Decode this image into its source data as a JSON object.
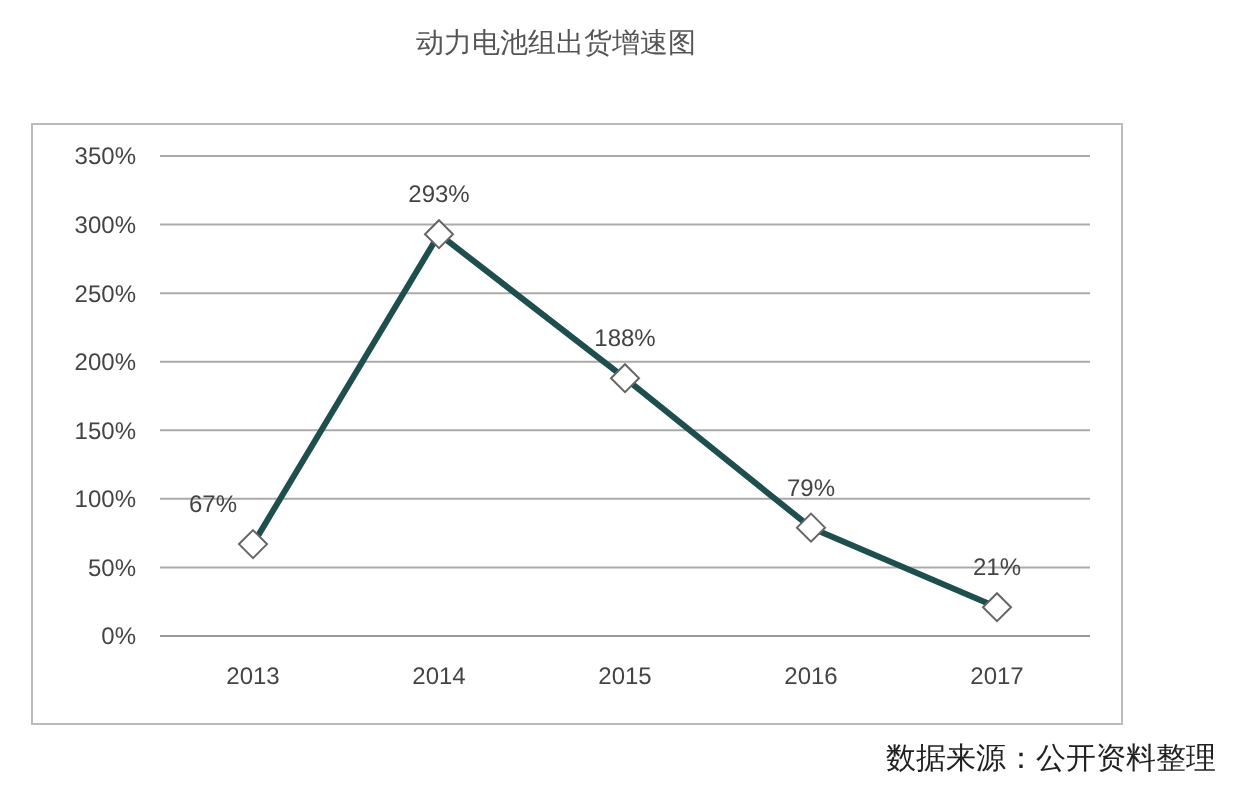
{
  "chart_data": {
    "type": "line",
    "title": "动力电池组出货增速图",
    "categories": [
      "2013",
      "2014",
      "2015",
      "2016",
      "2017"
    ],
    "series": [
      {
        "color": "#1f4e4f",
        "values": [
          67,
          293,
          188,
          79,
          21
        ],
        "value_labels": [
          "67%",
          "293%",
          "188%",
          "79%",
          "21%"
        ]
      }
    ],
    "ylim": [
      0,
      350
    ],
    "yticks": [
      {
        "value": 0,
        "label": "0%"
      },
      {
        "value": 50,
        "label": "50%"
      },
      {
        "value": 100,
        "label": "100%"
      },
      {
        "value": 150,
        "label": "150%"
      },
      {
        "value": 200,
        "label": "200%"
      },
      {
        "value": 250,
        "label": "250%"
      },
      {
        "value": 300,
        "label": "300%"
      },
      {
        "value": 350,
        "label": "350%"
      }
    ],
    "grid": "y",
    "marker": "diamond",
    "line_style": "solid",
    "annotations": [
      "数据来源：公开资料整理"
    ]
  }
}
